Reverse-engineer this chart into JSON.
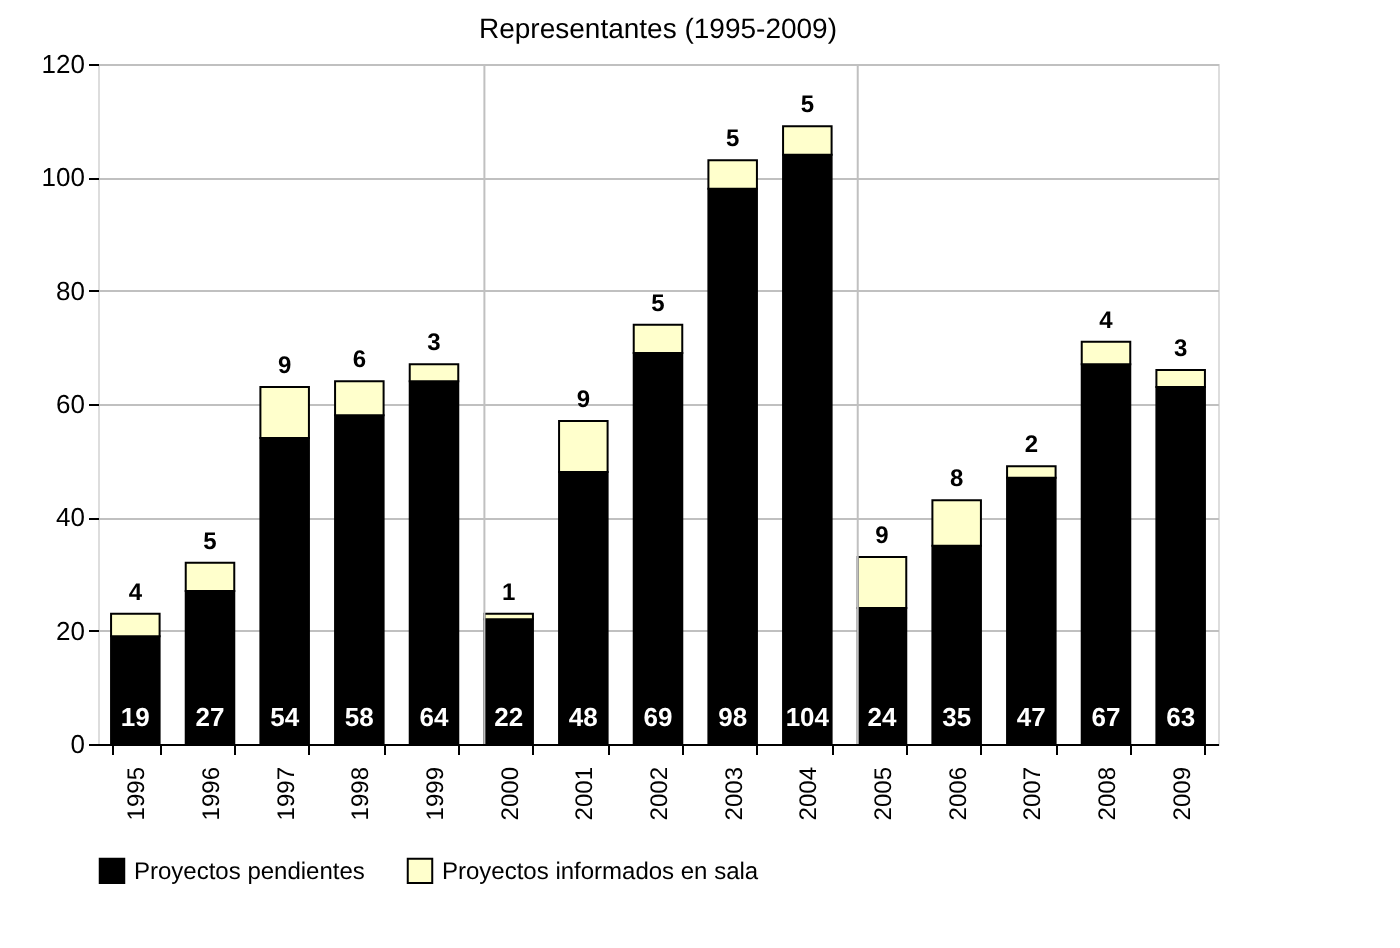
{
  "chart_data": {
    "type": "bar",
    "title": "Representantes (1995-2009)",
    "stacked": true,
    "categories": [
      "1995",
      "1996",
      "1997",
      "1998",
      "1999",
      "2000",
      "2001",
      "2002",
      "2003",
      "2004",
      "2005",
      "2006",
      "2007",
      "2008",
      "2009"
    ],
    "series": [
      {
        "name": "Proyectos pendientes",
        "color": "#000000",
        "values": [
          19,
          27,
          54,
          58,
          64,
          22,
          48,
          69,
          98,
          104,
          24,
          35,
          47,
          67,
          63
        ]
      },
      {
        "name": "Proyectos informados en sala",
        "color": "#ffffcc",
        "values": [
          4,
          5,
          9,
          6,
          3,
          1,
          9,
          5,
          5,
          5,
          9,
          8,
          2,
          4,
          3
        ]
      }
    ],
    "ylim": [
      0,
      120
    ],
    "yticks": [
      0,
      20,
      40,
      60,
      80,
      100,
      120
    ],
    "grid": "y",
    "legend": "bottom",
    "data_labels": true,
    "ref_lines": [
      {
        "axis": "x",
        "value": "2000",
        "color": "#c0c0c0"
      },
      {
        "axis": "x",
        "value": "2005",
        "color": "#c0c0c0"
      }
    ]
  }
}
